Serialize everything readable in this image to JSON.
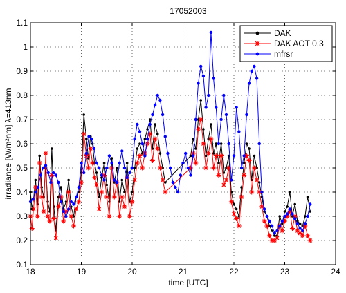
{
  "chart_data": {
    "type": "line",
    "title": "17052003",
    "xlabel": "time [UTC]",
    "ylabel": "irradiance [W/m²nm] λ=413nm",
    "xlim": [
      18,
      24
    ],
    "ylim": [
      0.1,
      1.1
    ],
    "xticks": [
      18,
      19,
      20,
      21,
      22,
      23,
      24
    ],
    "yticks": [
      0.1,
      0.2,
      0.3,
      0.4,
      0.5,
      0.6,
      0.7,
      0.8,
      0.9,
      1.0,
      1.1
    ],
    "xtick_labels": [
      "18",
      "19",
      "20",
      "21",
      "22",
      "23",
      "24"
    ],
    "ytick_labels": [
      "0.1",
      "0.2",
      "0.3",
      "0.4",
      "0.5",
      "0.6",
      "0.7",
      "0.8",
      "0.9",
      "1",
      "1.1"
    ],
    "grid": true,
    "legend_position": "top-right",
    "series": [
      {
        "name": "DAK",
        "color": "#000000",
        "marker": "dot",
        "x": [
          18.0,
          18.03,
          18.06,
          18.1,
          18.14,
          18.18,
          18.22,
          18.26,
          18.3,
          18.34,
          18.38,
          18.42,
          18.46,
          18.5,
          18.55,
          18.6,
          18.65,
          18.7,
          18.75,
          18.8,
          18.85,
          18.9,
          18.95,
          19.0,
          19.05,
          19.1,
          19.14,
          19.18,
          19.22,
          19.26,
          19.3,
          19.35,
          19.4,
          19.45,
          19.5,
          19.55,
          19.6,
          19.65,
          19.7,
          19.75,
          19.8,
          19.85,
          19.9,
          19.95,
          20.0,
          20.05,
          20.1,
          20.15,
          20.2,
          20.25,
          20.3,
          20.35,
          20.4,
          20.45,
          20.5,
          20.55,
          20.6,
          20.65,
          21.15,
          21.2,
          21.25,
          21.3,
          21.35,
          21.4,
          21.45,
          21.5,
          21.55,
          21.6,
          21.65,
          21.7,
          21.75,
          21.8,
          21.85,
          21.9,
          21.95,
          22.0,
          22.05,
          22.1,
          22.15,
          22.2,
          22.25,
          22.3,
          22.35,
          22.4,
          22.45,
          22.5,
          22.55,
          22.6,
          22.65,
          22.7,
          22.75,
          22.8,
          22.85,
          22.9,
          22.95,
          23.0,
          23.05,
          23.1,
          23.15,
          23.2,
          23.25,
          23.3,
          23.35,
          23.4,
          23.45,
          23.5
        ],
        "y": [
          0.4,
          0.33,
          0.37,
          0.45,
          0.35,
          0.55,
          0.42,
          0.38,
          0.5,
          0.36,
          0.32,
          0.58,
          0.34,
          0.24,
          0.38,
          0.42,
          0.33,
          0.36,
          0.45,
          0.34,
          0.3,
          0.38,
          0.4,
          0.48,
          0.72,
          0.62,
          0.54,
          0.63,
          0.6,
          0.52,
          0.48,
          0.38,
          0.46,
          0.52,
          0.43,
          0.36,
          0.54,
          0.44,
          0.5,
          0.36,
          0.45,
          0.4,
          0.52,
          0.36,
          0.4,
          0.5,
          0.58,
          0.6,
          0.56,
          0.62,
          0.66,
          0.7,
          0.58,
          0.68,
          0.64,
          0.56,
          0.5,
          0.44,
          0.55,
          0.62,
          0.58,
          0.7,
          0.78,
          0.66,
          0.55,
          0.62,
          0.68,
          0.56,
          0.6,
          0.52,
          0.6,
          0.48,
          0.5,
          0.55,
          0.4,
          0.35,
          0.33,
          0.3,
          0.42,
          0.52,
          0.6,
          0.58,
          0.45,
          0.55,
          0.5,
          0.44,
          0.38,
          0.32,
          0.3,
          0.26,
          0.24,
          0.22,
          0.22,
          0.3,
          0.27,
          0.32,
          0.34,
          0.4,
          0.3,
          0.35,
          0.28,
          0.27,
          0.26,
          0.3,
          0.38,
          0.32
        ]
      },
      {
        "name": "DAK AOT 0.3",
        "color": "#ff0000",
        "marker": "star",
        "x": [
          18.0,
          18.03,
          18.06,
          18.1,
          18.14,
          18.18,
          18.22,
          18.26,
          18.3,
          18.34,
          18.38,
          18.42,
          18.46,
          18.5,
          18.55,
          18.6,
          18.65,
          18.7,
          18.75,
          18.8,
          18.85,
          18.9,
          18.95,
          19.0,
          19.05,
          19.1,
          19.14,
          19.18,
          19.22,
          19.26,
          19.3,
          19.35,
          19.4,
          19.45,
          19.5,
          19.55,
          19.6,
          19.65,
          19.7,
          19.75,
          19.8,
          19.85,
          19.9,
          19.95,
          20.0,
          20.05,
          20.1,
          20.15,
          20.2,
          20.25,
          20.3,
          20.35,
          20.4,
          20.45,
          20.5,
          20.55,
          20.6,
          20.65,
          21.15,
          21.2,
          21.25,
          21.3,
          21.35,
          21.4,
          21.45,
          21.5,
          21.55,
          21.6,
          21.65,
          21.7,
          21.75,
          21.8,
          21.85,
          21.9,
          21.95,
          22.0,
          22.05,
          22.1,
          22.15,
          22.2,
          22.25,
          22.3,
          22.35,
          22.4,
          22.45,
          22.5,
          22.55,
          22.6,
          22.65,
          22.7,
          22.75,
          22.8,
          22.85,
          22.9,
          22.95,
          23.0,
          23.05,
          23.1,
          23.15,
          23.2,
          23.25,
          23.3,
          23.35,
          23.4,
          23.45,
          23.5
        ],
        "y": [
          0.3,
          0.25,
          0.33,
          0.42,
          0.3,
          0.52,
          0.38,
          0.32,
          0.56,
          0.3,
          0.28,
          0.47,
          0.29,
          0.21,
          0.34,
          0.38,
          0.28,
          0.32,
          0.4,
          0.3,
          0.26,
          0.33,
          0.36,
          0.44,
          0.64,
          0.55,
          0.5,
          0.58,
          0.52,
          0.46,
          0.43,
          0.33,
          0.4,
          0.47,
          0.38,
          0.3,
          0.5,
          0.38,
          0.44,
          0.3,
          0.38,
          0.34,
          0.46,
          0.3,
          0.36,
          0.45,
          0.52,
          0.55,
          0.5,
          0.56,
          0.6,
          0.64,
          0.53,
          0.62,
          0.58,
          0.5,
          0.45,
          0.4,
          0.5,
          0.56,
          0.52,
          0.66,
          0.7,
          0.6,
          0.5,
          0.56,
          0.62,
          0.5,
          0.55,
          0.47,
          0.55,
          0.43,
          0.45,
          0.5,
          0.36,
          0.31,
          0.29,
          0.26,
          0.38,
          0.47,
          0.55,
          0.53,
          0.4,
          0.5,
          0.45,
          0.4,
          0.34,
          0.28,
          0.26,
          0.22,
          0.2,
          0.2,
          0.21,
          0.26,
          0.24,
          0.28,
          0.3,
          0.32,
          0.25,
          0.3,
          0.24,
          0.23,
          0.22,
          0.26,
          0.22,
          0.2
        ]
      },
      {
        "name": "mfrsr",
        "color": "#0000ff",
        "marker": "point",
        "x": [
          18.0,
          18.05,
          18.1,
          18.15,
          18.2,
          18.25,
          18.3,
          18.35,
          18.4,
          18.45,
          18.5,
          18.55,
          18.6,
          18.65,
          18.7,
          18.75,
          18.8,
          18.85,
          18.9,
          18.95,
          19.0,
          19.05,
          19.1,
          19.15,
          19.2,
          19.25,
          19.3,
          19.35,
          19.4,
          19.45,
          19.5,
          19.55,
          19.6,
          19.65,
          19.7,
          19.75,
          19.8,
          19.85,
          19.9,
          19.95,
          20.0,
          20.05,
          20.1,
          20.15,
          20.2,
          20.25,
          20.3,
          20.35,
          20.4,
          20.45,
          20.5,
          20.55,
          20.6,
          20.65,
          20.7,
          20.75,
          20.8,
          20.85,
          20.9,
          20.95,
          21.0,
          21.05,
          21.1,
          21.15,
          21.2,
          21.25,
          21.3,
          21.35,
          21.4,
          21.45,
          21.5,
          21.55,
          21.6,
          21.65,
          21.7,
          21.75,
          21.8,
          21.85,
          21.9,
          21.95,
          22.0,
          22.05,
          22.1,
          22.15,
          22.2,
          22.25,
          22.3,
          22.35,
          22.4,
          22.45,
          22.5,
          22.55,
          22.6,
          22.65,
          22.7,
          22.75,
          22.8,
          22.85,
          22.9,
          22.95,
          23.0,
          23.05,
          23.1,
          23.15,
          23.2,
          23.25,
          23.3,
          23.35,
          23.4,
          23.45,
          23.5
        ],
        "y": [
          0.36,
          0.37,
          0.4,
          0.42,
          0.47,
          0.5,
          0.51,
          0.48,
          0.44,
          0.48,
          0.47,
          0.44,
          0.36,
          0.32,
          0.3,
          0.33,
          0.36,
          0.35,
          0.38,
          0.42,
          0.52,
          0.48,
          0.56,
          0.63,
          0.62,
          0.58,
          0.52,
          0.5,
          0.47,
          0.45,
          0.5,
          0.55,
          0.52,
          0.45,
          0.44,
          0.52,
          0.57,
          0.5,
          0.46,
          0.48,
          0.5,
          0.62,
          0.68,
          0.65,
          0.6,
          0.55,
          0.62,
          0.68,
          0.72,
          0.76,
          0.8,
          0.78,
          0.72,
          0.63,
          0.56,
          0.5,
          0.44,
          0.42,
          0.4,
          0.47,
          0.52,
          0.56,
          0.5,
          0.47,
          0.55,
          0.7,
          0.85,
          0.92,
          0.88,
          0.75,
          0.8,
          1.06,
          0.87,
          0.75,
          0.6,
          0.7,
          0.8,
          0.72,
          0.6,
          0.45,
          0.55,
          0.75,
          0.65,
          0.5,
          0.55,
          0.72,
          0.85,
          0.9,
          0.92,
          0.87,
          0.6,
          0.4,
          0.33,
          0.3,
          0.28,
          0.26,
          0.23,
          0.24,
          0.26,
          0.28,
          0.3,
          0.31,
          0.33,
          0.31,
          0.29,
          0.27,
          0.25,
          0.24,
          0.27,
          0.3,
          0.35
        ]
      }
    ]
  }
}
